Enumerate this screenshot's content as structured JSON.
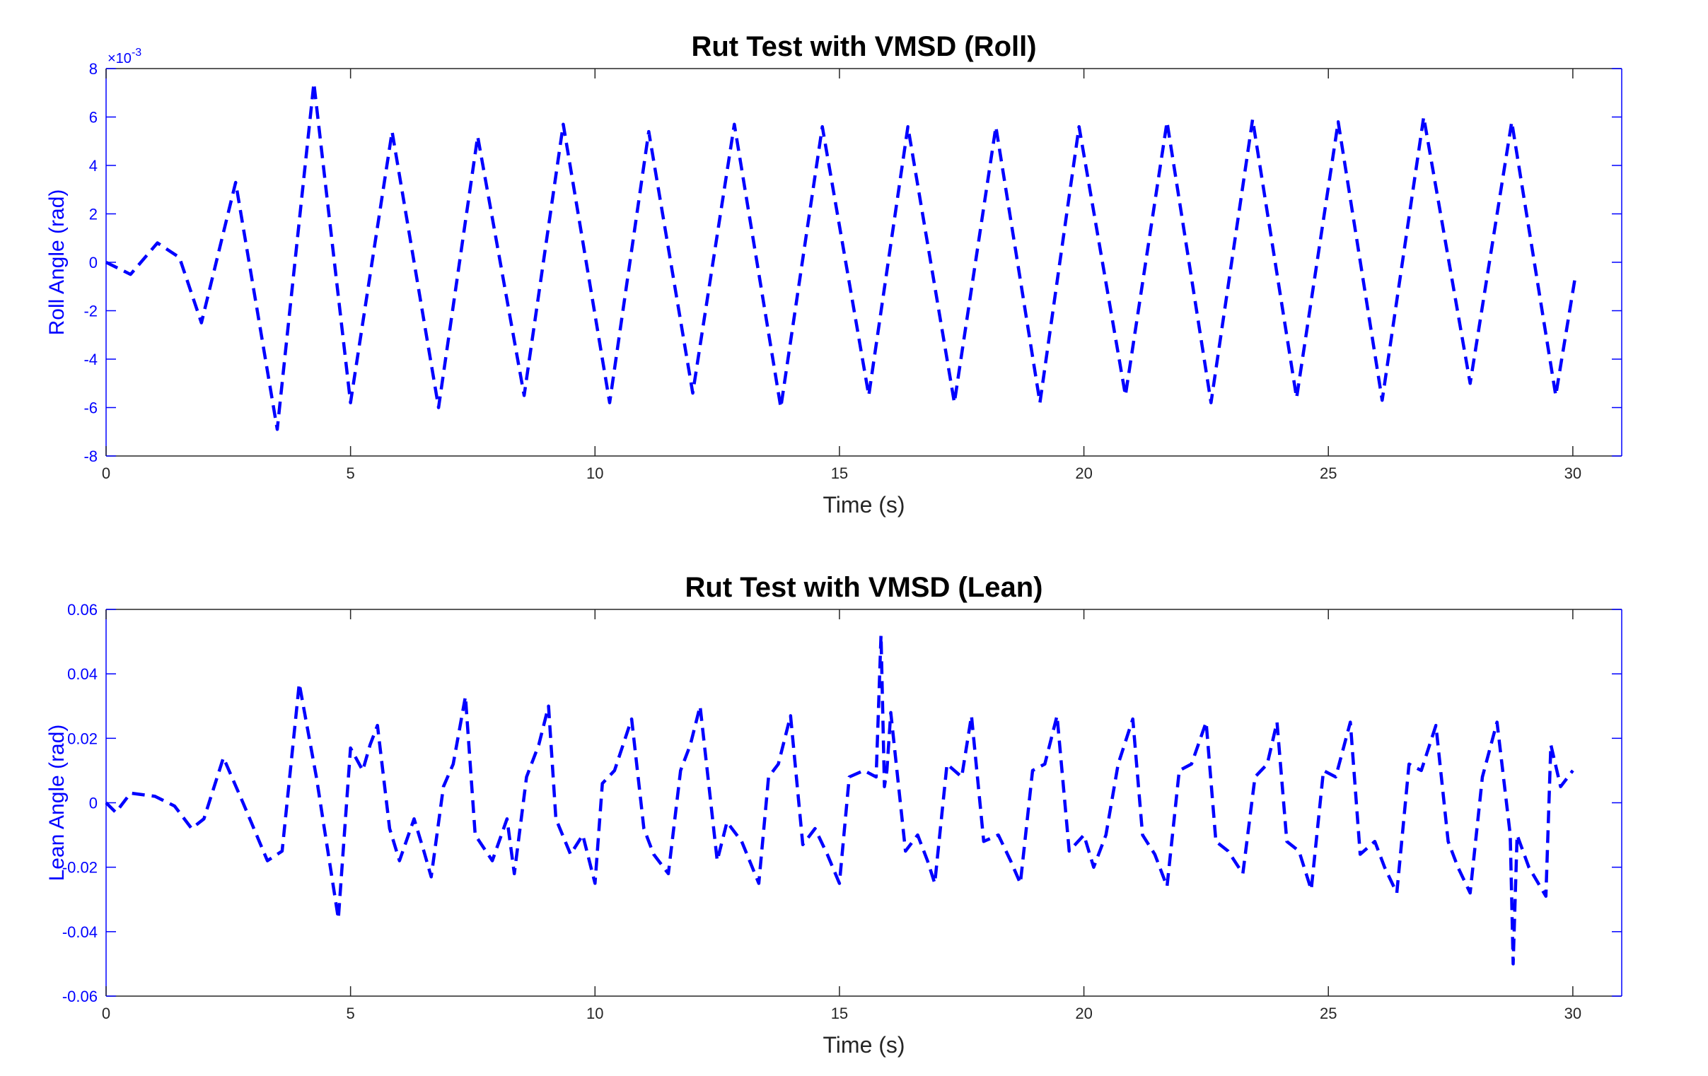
{
  "chart_data": [
    {
      "type": "line",
      "title": "Rut Test with VMSD (Roll)",
      "xlabel": "Time (s)",
      "ylabel": "Roll Angle (rad)",
      "y_exponent_label": "×10-3",
      "xlim": [
        0,
        31
      ],
      "ylim": [
        -8,
        8
      ],
      "xticks": [
        0,
        5,
        10,
        15,
        20,
        25,
        30
      ],
      "xtick_labels": [
        "0",
        "5",
        "10",
        "15",
        "20",
        "25",
        "30"
      ],
      "yticks": [
        -8,
        -6,
        -4,
        -2,
        0,
        2,
        4,
        6,
        8
      ],
      "ytick_labels": [
        "-8",
        "-6",
        "-4",
        "-2",
        "0",
        "2",
        "4",
        "6",
        "8"
      ],
      "line_style": "dashed",
      "colors": {
        "line": "#0000ff",
        "axis_y": "#0000ff",
        "axis_x": "#262626"
      },
      "grid": false,
      "series": [
        {
          "x": [
            0,
            0.5,
            1.05,
            1.5,
            1.95,
            2.65,
            3.5,
            4.25,
            5.0,
            5.85,
            6.8,
            7.6,
            8.55,
            9.35,
            10.3,
            11.1,
            12.0,
            12.85,
            13.8,
            14.65,
            15.6,
            16.4,
            17.35,
            18.2,
            19.1,
            19.9,
            20.85,
            21.7,
            22.6,
            23.45,
            24.35,
            25.2,
            26.1,
            26.95,
            27.9,
            28.75,
            29.65,
            30.05
          ],
          "y": [
            0,
            -0.5,
            0.8,
            0.2,
            -2.5,
            3.3,
            -6.9,
            7.4,
            -5.8,
            5.4,
            -6.0,
            5.2,
            -5.5,
            5.7,
            -5.8,
            5.4,
            -5.4,
            5.7,
            -6.0,
            5.6,
            -5.5,
            5.6,
            -5.8,
            5.6,
            -5.8,
            5.6,
            -5.5,
            5.8,
            -5.8,
            5.9,
            -5.6,
            5.8,
            -5.7,
            6.0,
            -5.0,
            5.8,
            -5.5,
            -0.6
          ]
        }
      ]
    },
    {
      "type": "line",
      "title": "Rut Test with VMSD (Lean)",
      "xlabel": "Time (s)",
      "ylabel": "Lean Angle (rad)",
      "xlim": [
        0,
        31
      ],
      "ylim": [
        -0.06,
        0.06
      ],
      "xticks": [
        0,
        5,
        10,
        15,
        20,
        25,
        30
      ],
      "xtick_labels": [
        "0",
        "5",
        "10",
        "15",
        "20",
        "25",
        "30"
      ],
      "yticks": [
        -0.06,
        -0.04,
        -0.02,
        0,
        0.02,
        0.04,
        0.06
      ],
      "ytick_labels": [
        "-0.06",
        "-0.04",
        "-0.02",
        "0",
        "0.02",
        "0.04",
        "0.06"
      ],
      "line_style": "dashed",
      "colors": {
        "line": "#0000ff",
        "axis_y": "#0000ff",
        "axis_x": "#262626"
      },
      "grid": false,
      "series": [
        {
          "x": [
            0,
            0.2,
            0.5,
            1.0,
            1.4,
            1.75,
            2.0,
            2.4,
            2.8,
            3.3,
            3.6,
            3.95,
            4.3,
            4.75,
            5.0,
            5.25,
            5.4,
            5.55,
            5.8,
            6.0,
            6.3,
            6.5,
            6.65,
            6.9,
            7.1,
            7.35,
            7.55,
            7.9,
            8.2,
            8.35,
            8.6,
            8.85,
            9.05,
            9.2,
            9.5,
            9.75,
            10.0,
            10.15,
            10.4,
            10.75,
            11.0,
            11.2,
            11.5,
            11.75,
            11.95,
            12.15,
            12.5,
            12.7,
            13.0,
            13.35,
            13.55,
            13.75,
            14.0,
            14.25,
            14.5,
            14.75,
            15.0,
            15.2,
            15.5,
            15.75,
            15.85,
            15.92,
            15.97,
            16.05,
            16.35,
            16.6,
            16.8,
            16.95,
            17.2,
            17.5,
            17.7,
            17.95,
            18.25,
            18.5,
            18.7,
            18.95,
            19.2,
            19.45,
            19.7,
            20.0,
            20.2,
            20.45,
            20.7,
            21.0,
            21.2,
            21.45,
            21.7,
            21.95,
            22.2,
            22.5,
            22.7,
            22.95,
            23.25,
            23.5,
            23.75,
            23.95,
            24.15,
            24.4,
            24.65,
            24.9,
            25.15,
            25.45,
            25.65,
            25.95,
            26.15,
            26.4,
            26.65,
            26.9,
            27.2,
            27.45,
            27.65,
            27.9,
            28.15,
            28.45,
            28.72,
            28.78,
            28.86,
            29.1,
            29.45,
            29.55,
            29.75,
            30.0
          ],
          "y": [
            0,
            -0.003,
            0.003,
            0.002,
            -0.001,
            -0.008,
            -0.005,
            0.014,
            0.0,
            -0.018,
            -0.015,
            0.037,
            0.008,
            -0.036,
            0.017,
            0.01,
            0.018,
            0.024,
            -0.008,
            -0.018,
            -0.005,
            -0.015,
            -0.023,
            0.005,
            0.012,
            0.033,
            -0.01,
            -0.018,
            -0.005,
            -0.022,
            0.008,
            0.018,
            0.03,
            -0.005,
            -0.016,
            -0.01,
            -0.025,
            0.006,
            0.01,
            0.026,
            -0.008,
            -0.016,
            -0.022,
            0.01,
            0.018,
            0.03,
            -0.018,
            -0.006,
            -0.012,
            -0.025,
            0.008,
            0.012,
            0.027,
            -0.013,
            -0.008,
            -0.016,
            -0.025,
            0.008,
            0.01,
            0.008,
            0.052,
            0.005,
            0.01,
            0.028,
            -0.015,
            -0.01,
            -0.018,
            -0.025,
            0.012,
            0.008,
            0.027,
            -0.012,
            -0.01,
            -0.018,
            -0.025,
            0.01,
            0.012,
            0.027,
            -0.015,
            -0.01,
            -0.02,
            -0.01,
            0.012,
            0.026,
            -0.01,
            -0.016,
            -0.026,
            0.01,
            0.012,
            0.025,
            -0.012,
            -0.015,
            -0.022,
            0.008,
            0.012,
            0.025,
            -0.012,
            -0.015,
            -0.027,
            0.01,
            0.008,
            0.025,
            -0.016,
            -0.012,
            -0.02,
            -0.028,
            0.012,
            0.01,
            0.024,
            -0.012,
            -0.02,
            -0.028,
            0.008,
            0.025,
            -0.01,
            -0.05,
            -0.01,
            -0.02,
            -0.029,
            0.018,
            0.005,
            0.01
          ]
        }
      ]
    }
  ]
}
